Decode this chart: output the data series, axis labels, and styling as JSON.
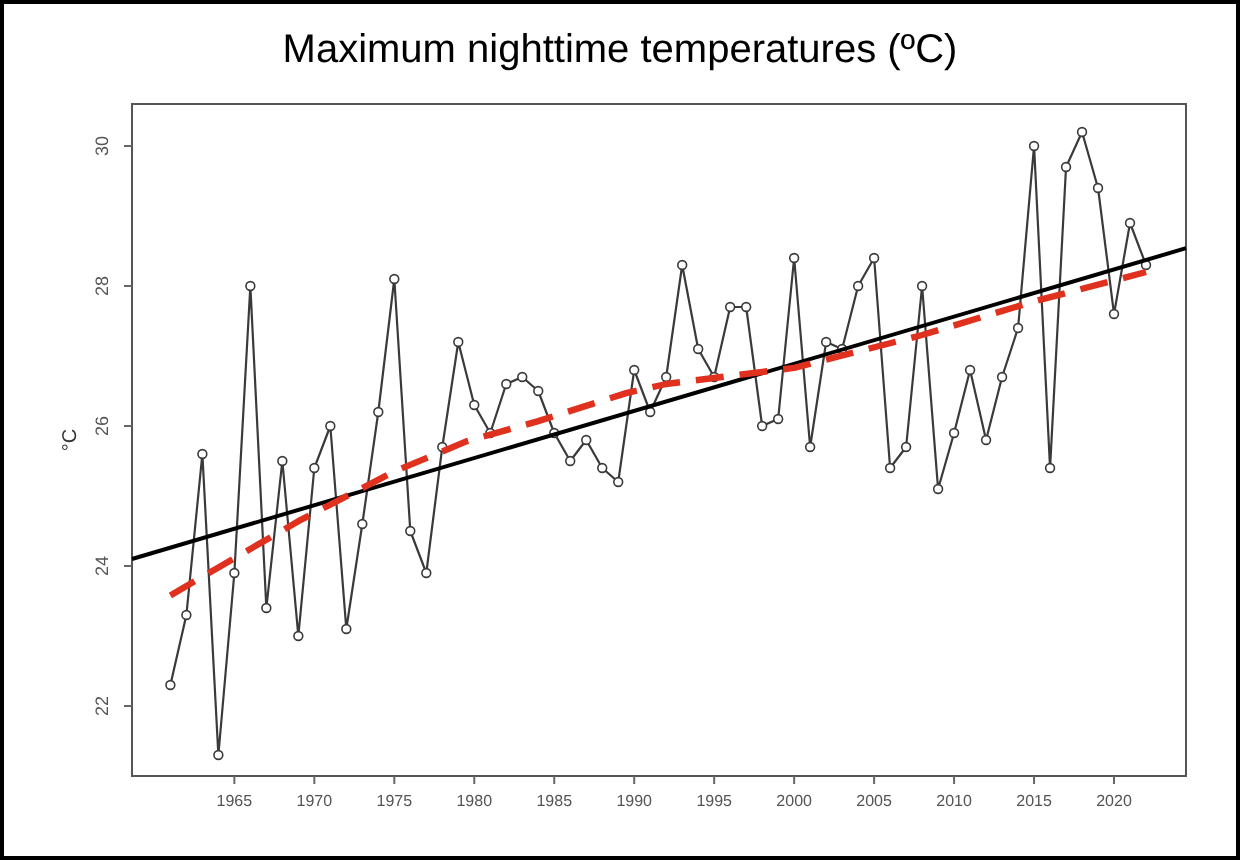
{
  "chart_data": {
    "type": "line",
    "title": "Maximum nighttime temperatures (ºC)",
    "ylabel": "°C",
    "xlim": [
      1958.6,
      2024.5
    ],
    "ylim": [
      21.0,
      30.6
    ],
    "xticks": [
      1965,
      1970,
      1975,
      1980,
      1985,
      1990,
      1995,
      2000,
      2005,
      2010,
      2015,
      2020
    ],
    "yticks": [
      22,
      24,
      26,
      28,
      30
    ],
    "grid": false,
    "series": [
      {
        "color": "#3a3a3a",
        "marker": "circle",
        "line_style": "solid",
        "x": [
          1961,
          1962,
          1963,
          1964,
          1965,
          1966,
          1967,
          1968,
          1969,
          1970,
          1971,
          1972,
          1973,
          1974,
          1975,
          1976,
          1977,
          1978,
          1979,
          1980,
          1981,
          1982,
          1983,
          1984,
          1985,
          1986,
          1987,
          1988,
          1989,
          1990,
          1991,
          1992,
          1993,
          1994,
          1995,
          1996,
          1997,
          1998,
          1999,
          2000,
          2001,
          2002,
          2003,
          2004,
          2005,
          2006,
          2007,
          2008,
          2009,
          2010,
          2011,
          2012,
          2013,
          2014,
          2015,
          2016,
          2017,
          2018,
          2019,
          2020,
          2021,
          2022
        ],
        "values": [
          22.3,
          23.3,
          25.6,
          21.3,
          23.9,
          28.0,
          23.4,
          25.5,
          23.0,
          25.4,
          26.0,
          23.1,
          24.6,
          26.2,
          28.1,
          24.5,
          23.9,
          25.7,
          27.2,
          26.3,
          25.9,
          26.6,
          26.7,
          26.5,
          25.9,
          25.5,
          25.8,
          25.4,
          25.2,
          26.8,
          26.2,
          26.7,
          28.3,
          27.1,
          26.7,
          27.7,
          27.7,
          26.0,
          26.1,
          28.4,
          25.7,
          27.2,
          27.1,
          28.0,
          28.4,
          25.4,
          25.7,
          28.0,
          25.1,
          25.9,
          26.8,
          25.8,
          26.7,
          27.4,
          30.0,
          25.4,
          29.7,
          30.2,
          29.4,
          27.6,
          28.9,
          28.3
        ]
      },
      {
        "color": "#000000",
        "marker": "none",
        "line_style": "solid",
        "x": [
          1958.6,
          2024.5
        ],
        "values": [
          24.1,
          28.54
        ]
      },
      {
        "color": "#e0301e",
        "marker": "none",
        "line_style": "dashed",
        "x": [
          1961,
          1964,
          1969,
          1975,
          1979.5,
          1984,
          1989.5,
          1992,
          2000,
          2008,
          2015,
          2022
        ],
        "values": [
          23.58,
          23.98,
          24.64,
          25.35,
          25.78,
          26.07,
          26.47,
          26.6,
          26.83,
          27.3,
          27.78,
          28.2
        ]
      }
    ]
  }
}
